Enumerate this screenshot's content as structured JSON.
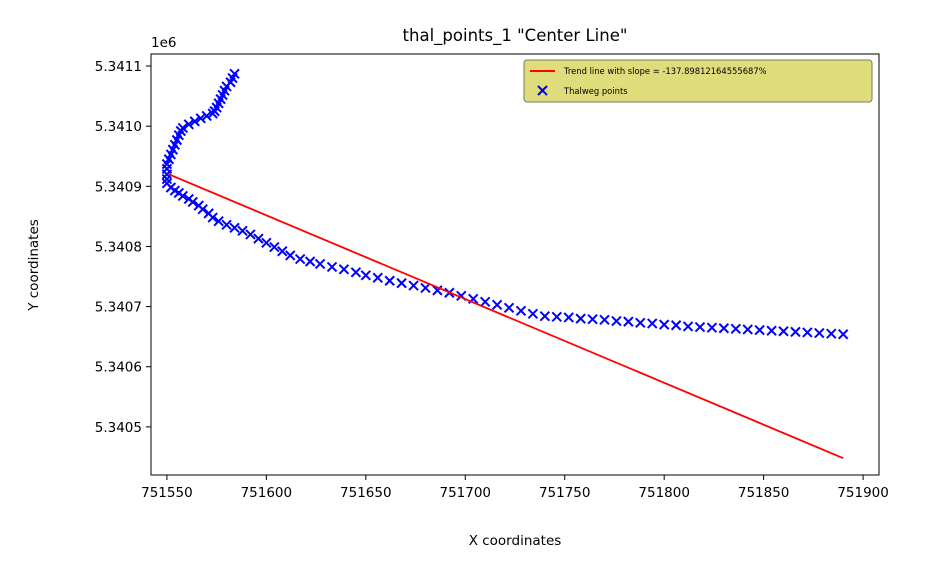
{
  "chart_data": {
    "type": "scatter",
    "title": "thal_points_1 \"Center Line\"",
    "xlabel": "X coordinates",
    "ylabel": "Y coordinates",
    "y_offset_label": "1e6",
    "xlim": [
      751542,
      751908
    ],
    "ylim": [
      5340420,
      5341120
    ],
    "x_ticks": [
      751550,
      751600,
      751650,
      751700,
      751750,
      751800,
      751850,
      751900
    ],
    "x_tick_labels": [
      "751550",
      "751600",
      "751650",
      "751700",
      "751750",
      "751800",
      "751850",
      "751900"
    ],
    "y_ticks": [
      5340500,
      5340600,
      5340700,
      5340800,
      5340900,
      5341000,
      5341100
    ],
    "y_tick_labels": [
      "5.3405",
      "5.3406",
      "5.3407",
      "5.3408",
      "5.3409",
      "5.3410",
      "5.3411"
    ],
    "grid": false,
    "legend_position": "top-right",
    "series": [
      {
        "name": "Trend line with slope = -137.89812164555687%",
        "kind": "line",
        "color": "#ff0000",
        "points": [
          [
            751551,
            5340920
          ],
          [
            751890,
            5340448
          ]
        ]
      },
      {
        "name": "Thalweg points",
        "kind": "scatter",
        "marker": "x",
        "color": "#0000ff",
        "points": [
          [
            751584,
            5341087
          ],
          [
            751583,
            5341080
          ],
          [
            751582,
            5341073
          ],
          [
            751580,
            5341066
          ],
          [
            751579,
            5341059
          ],
          [
            751578,
            5341052
          ],
          [
            751577,
            5341045
          ],
          [
            751576,
            5341038
          ],
          [
            751575,
            5341031
          ],
          [
            751574,
            5341025
          ],
          [
            751573,
            5341021
          ],
          [
            751570,
            5341017
          ],
          [
            751567,
            5341013
          ],
          [
            751564,
            5341008
          ],
          [
            751561,
            5341003
          ],
          [
            751558,
            5340997
          ],
          [
            751557,
            5340992
          ],
          [
            751556,
            5340985
          ],
          [
            751555,
            5340977
          ],
          [
            751554,
            5340969
          ],
          [
            751553,
            5340961
          ],
          [
            751552,
            5340953
          ],
          [
            751551,
            5340945
          ],
          [
            751550,
            5340937
          ],
          [
            751550,
            5340929
          ],
          [
            751550,
            5340920
          ],
          [
            751550,
            5340912
          ],
          [
            751550,
            5340905
          ],
          [
            751552,
            5340898
          ],
          [
            751554,
            5340893
          ],
          [
            751556,
            5340889
          ],
          [
            751558,
            5340884
          ],
          [
            751561,
            5340879
          ],
          [
            751563,
            5340874
          ],
          [
            751566,
            5340868
          ],
          [
            751568,
            5340862
          ],
          [
            751571,
            5340855
          ],
          [
            751573,
            5340848
          ],
          [
            751576,
            5340842
          ],
          [
            751580,
            5340836
          ],
          [
            751584,
            5340831
          ],
          [
            751588,
            5340826
          ],
          [
            751592,
            5340820
          ],
          [
            751596,
            5340813
          ],
          [
            751600,
            5340806
          ],
          [
            751604,
            5340799
          ],
          [
            751608,
            5340792
          ],
          [
            751612,
            5340785
          ],
          [
            751617,
            5340779
          ],
          [
            751622,
            5340775
          ],
          [
            751627,
            5340771
          ],
          [
            751633,
            5340766
          ],
          [
            751639,
            5340762
          ],
          [
            751645,
            5340757
          ],
          [
            751650,
            5340752
          ],
          [
            751656,
            5340748
          ],
          [
            751662,
            5340743
          ],
          [
            751668,
            5340739
          ],
          [
            751674,
            5340735
          ],
          [
            751680,
            5340731
          ],
          [
            751686,
            5340727
          ],
          [
            751692,
            5340723
          ],
          [
            751698,
            5340718
          ],
          [
            751704,
            5340713
          ],
          [
            751710,
            5340708
          ],
          [
            751716,
            5340703
          ],
          [
            751722,
            5340698
          ],
          [
            751728,
            5340693
          ],
          [
            751734,
            5340688
          ],
          [
            751740,
            5340684
          ],
          [
            751746,
            5340683
          ],
          [
            751752,
            5340682
          ],
          [
            751758,
            5340680
          ],
          [
            751764,
            5340679
          ],
          [
            751770,
            5340678
          ],
          [
            751776,
            5340676
          ],
          [
            751782,
            5340675
          ],
          [
            751788,
            5340673
          ],
          [
            751794,
            5340672
          ],
          [
            751800,
            5340670
          ],
          [
            751806,
            5340669
          ],
          [
            751812,
            5340667
          ],
          [
            751818,
            5340666
          ],
          [
            751824,
            5340665
          ],
          [
            751830,
            5340664
          ],
          [
            751836,
            5340663
          ],
          [
            751842,
            5340662
          ],
          [
            751848,
            5340661
          ],
          [
            751854,
            5340660
          ],
          [
            751860,
            5340659
          ],
          [
            751866,
            5340658
          ],
          [
            751872,
            5340657
          ],
          [
            751878,
            5340656
          ],
          [
            751884,
            5340655
          ],
          [
            751890,
            5340654
          ]
        ]
      }
    ]
  },
  "colors": {
    "legend_background": "#dfdc7b",
    "legend_border": "#7a7a5c",
    "axes": "#000000"
  }
}
